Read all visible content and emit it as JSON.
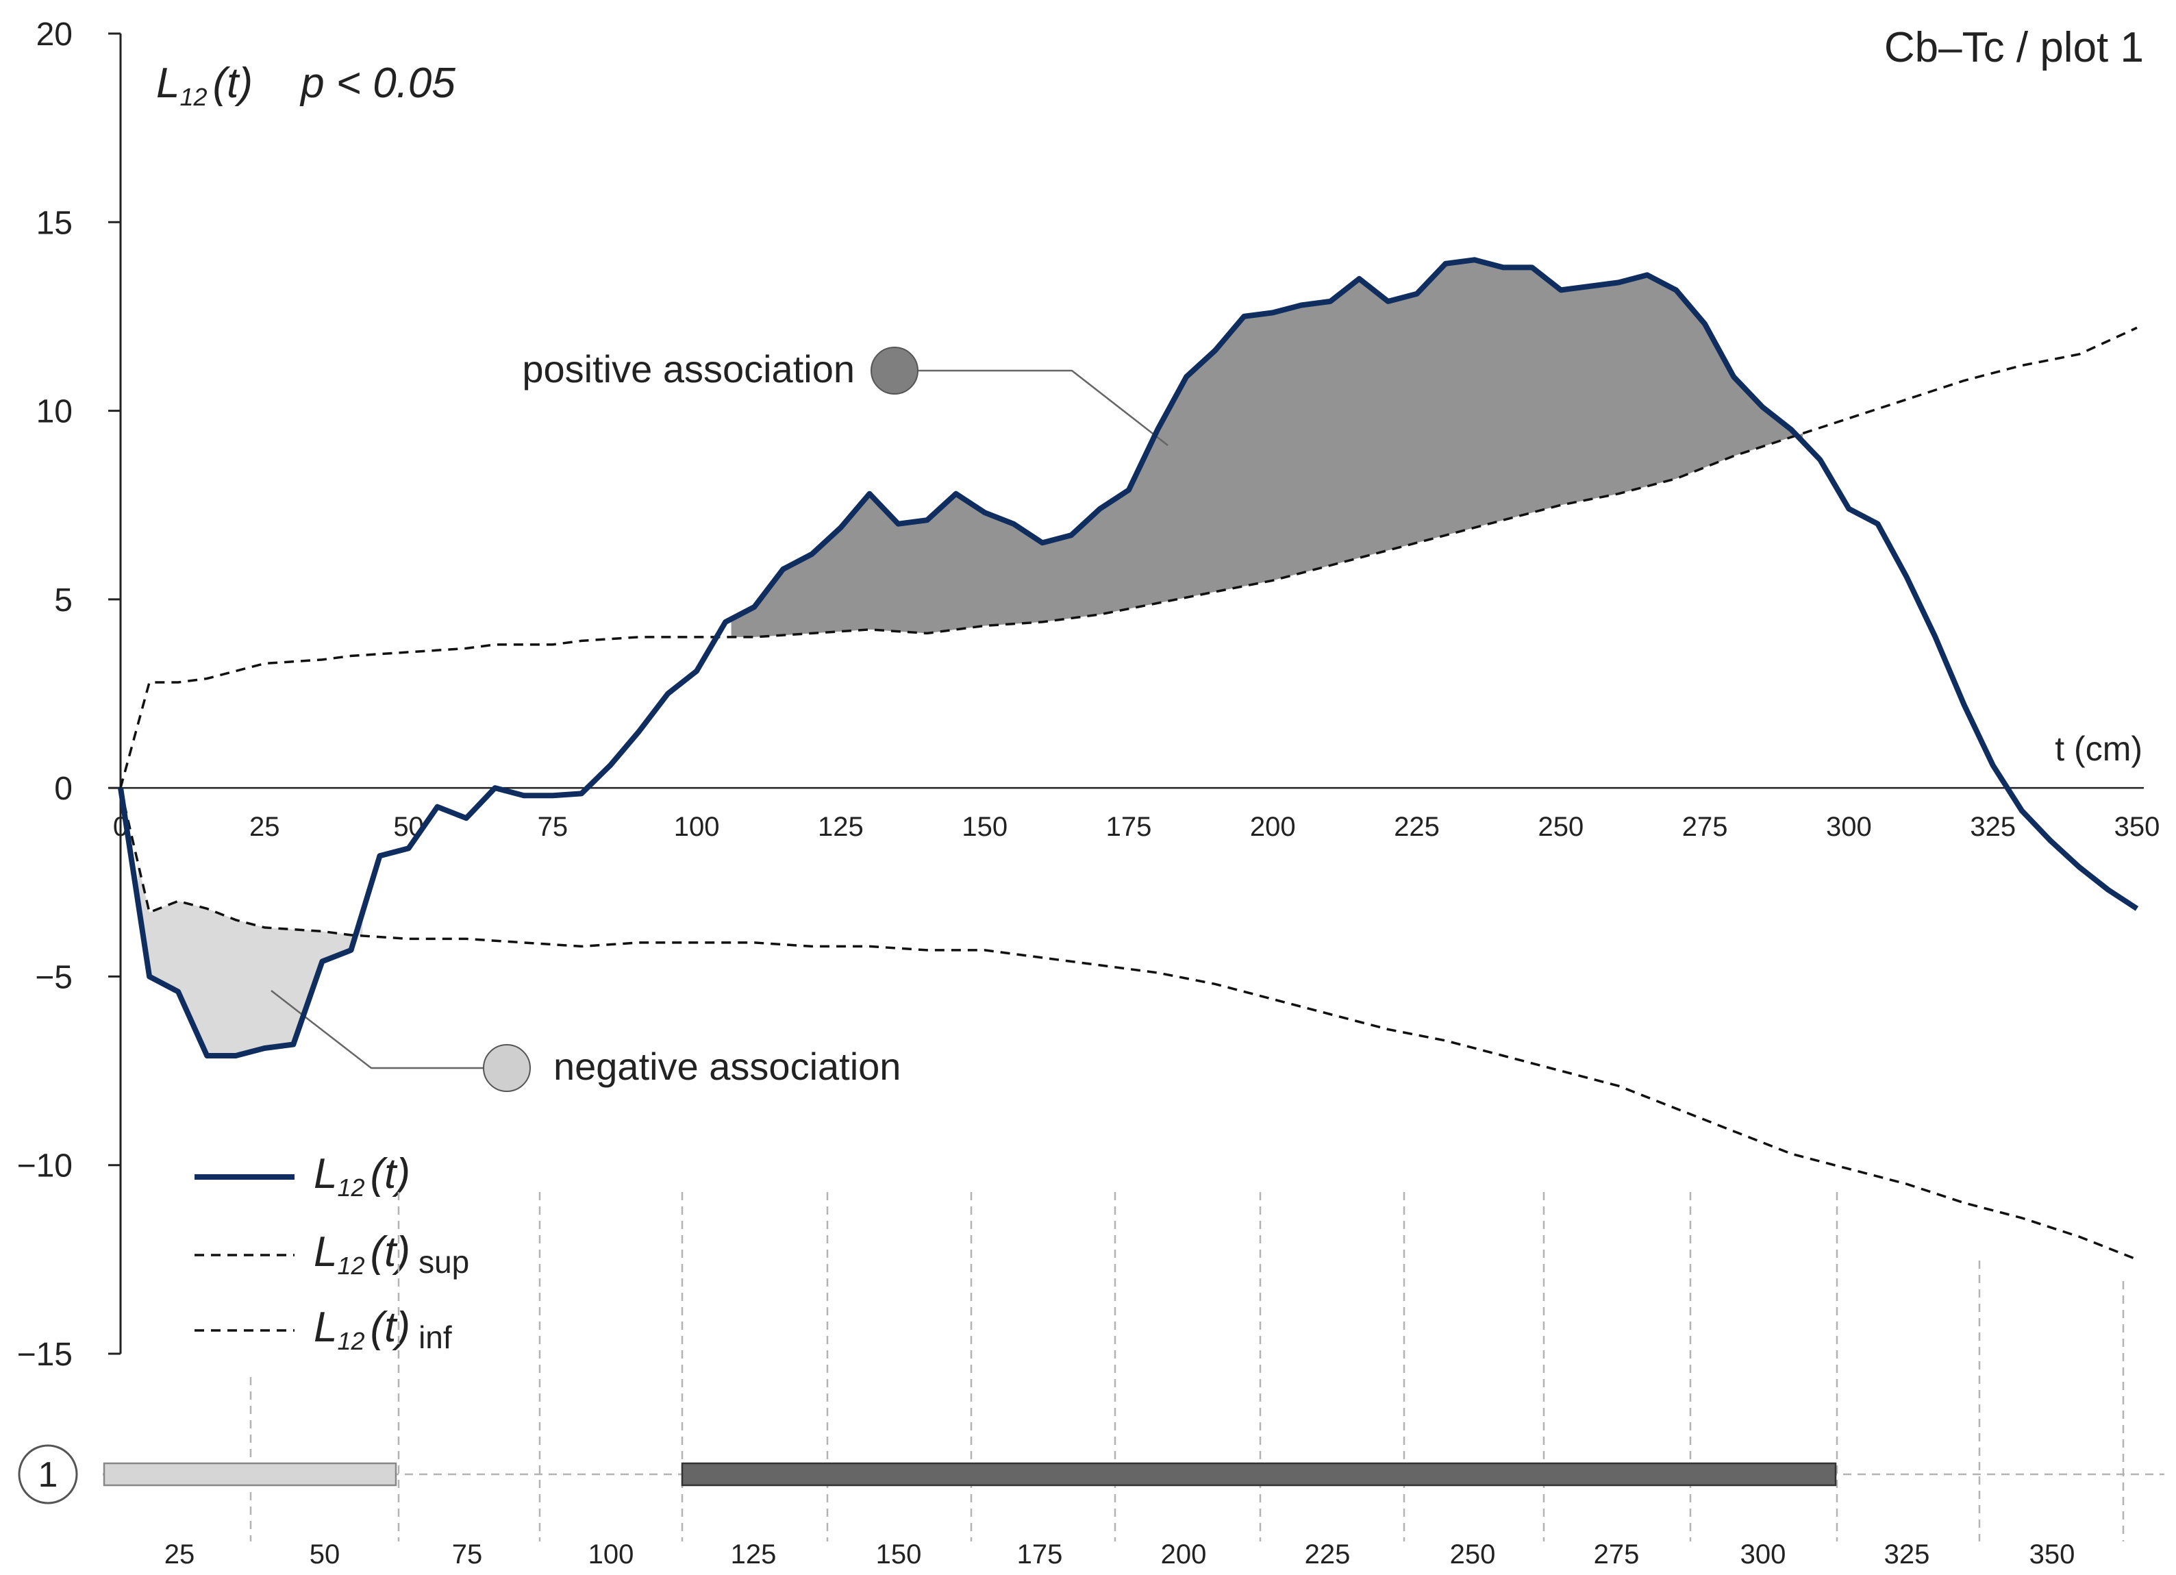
{
  "chart_data": {
    "type": "line",
    "title": "Cb–Tc / plot 1",
    "subtitle": {
      "stat": "L",
      "stat_sub": "12",
      "stat_arg": "(t)",
      "significance": "p < 0.05"
    },
    "xlabel": "t (cm)",
    "ylabel": "",
    "xlim": [
      0,
      350
    ],
    "ylim": [
      -15,
      20
    ],
    "x_ticks": [
      0,
      25,
      50,
      75,
      100,
      125,
      150,
      175,
      200,
      225,
      250,
      275,
      300,
      325,
      350
    ],
    "y_ticks": [
      {
        "value": 20,
        "label": "20"
      },
      {
        "value": 15,
        "label": "15"
      },
      {
        "value": 10,
        "label": "10"
      },
      {
        "value": 5,
        "label": "5"
      },
      {
        "value": 0,
        "label": "0"
      },
      {
        "value": -5,
        "label": "−5"
      },
      {
        "value": -10,
        "label": "−10"
      },
      {
        "value": -15,
        "label": "−15"
      }
    ],
    "series": [
      {
        "name": "L12(t)",
        "color": "#0f2d5e",
        "style": "solid",
        "points": [
          [
            0,
            0
          ],
          [
            5,
            -5
          ],
          [
            10,
            -5.4
          ],
          [
            15,
            -7.1
          ],
          [
            20,
            -7.1
          ],
          [
            25,
            -6.9
          ],
          [
            30,
            -6.8
          ],
          [
            35,
            -4.6
          ],
          [
            40,
            -4.3
          ],
          [
            45,
            -1.8
          ],
          [
            50,
            -1.6
          ],
          [
            55,
            -0.5
          ],
          [
            60,
            -0.8
          ],
          [
            65,
            0
          ],
          [
            70,
            -0.2
          ],
          [
            75,
            -0.2
          ],
          [
            80,
            -0.15
          ],
          [
            85,
            0.6
          ],
          [
            90,
            1.5
          ],
          [
            95,
            2.5
          ],
          [
            100,
            3.1
          ],
          [
            105,
            4.4
          ],
          [
            110,
            4.8
          ],
          [
            115,
            5.8
          ],
          [
            120,
            6.2
          ],
          [
            125,
            6.9
          ],
          [
            130,
            7.8
          ],
          [
            135,
            7.0
          ],
          [
            140,
            7.1
          ],
          [
            145,
            7.8
          ],
          [
            150,
            7.3
          ],
          [
            155,
            7.0
          ],
          [
            160,
            6.5
          ],
          [
            165,
            6.7
          ],
          [
            170,
            7.4
          ],
          [
            175,
            7.9
          ],
          [
            180,
            9.5
          ],
          [
            185,
            10.9
          ],
          [
            190,
            11.6
          ],
          [
            195,
            12.5
          ],
          [
            200,
            12.6
          ],
          [
            205,
            12.8
          ],
          [
            210,
            12.9
          ],
          [
            215,
            13.5
          ],
          [
            220,
            12.9
          ],
          [
            225,
            13.1
          ],
          [
            230,
            13.9
          ],
          [
            235,
            14.0
          ],
          [
            240,
            13.8
          ],
          [
            245,
            13.8
          ],
          [
            250,
            13.2
          ],
          [
            255,
            13.3
          ],
          [
            260,
            13.4
          ],
          [
            265,
            13.6
          ],
          [
            270,
            13.2
          ],
          [
            275,
            12.3
          ],
          [
            280,
            10.9
          ],
          [
            285,
            10.1
          ],
          [
            290,
            9.5
          ],
          [
            295,
            8.7
          ],
          [
            300,
            7.4
          ],
          [
            305,
            7.0
          ],
          [
            310,
            5.6
          ],
          [
            315,
            4.0
          ],
          [
            320,
            2.2
          ],
          [
            325,
            0.6
          ],
          [
            330,
            -0.6
          ],
          [
            335,
            -1.4
          ],
          [
            340,
            -2.1
          ],
          [
            345,
            -2.7
          ],
          [
            350,
            -3.2
          ]
        ]
      },
      {
        "name": "L12(t) sup",
        "color": "#111111",
        "style": "dashed",
        "points": [
          [
            0,
            0
          ],
          [
            5,
            2.8
          ],
          [
            10,
            2.8
          ],
          [
            15,
            2.9
          ],
          [
            20,
            3.1
          ],
          [
            25,
            3.3
          ],
          [
            35,
            3.4
          ],
          [
            40,
            3.5
          ],
          [
            50,
            3.6
          ],
          [
            60,
            3.7
          ],
          [
            65,
            3.8
          ],
          [
            75,
            3.8
          ],
          [
            80,
            3.9
          ],
          [
            90,
            4.0
          ],
          [
            100,
            4.0
          ],
          [
            110,
            4.0
          ],
          [
            120,
            4.1
          ],
          [
            130,
            4.2
          ],
          [
            140,
            4.1
          ],
          [
            150,
            4.3
          ],
          [
            160,
            4.4
          ],
          [
            170,
            4.6
          ],
          [
            180,
            4.9
          ],
          [
            190,
            5.2
          ],
          [
            200,
            5.5
          ],
          [
            210,
            5.9
          ],
          [
            220,
            6.3
          ],
          [
            230,
            6.7
          ],
          [
            240,
            7.1
          ],
          [
            250,
            7.5
          ],
          [
            260,
            7.8
          ],
          [
            270,
            8.2
          ],
          [
            280,
            8.8
          ],
          [
            290,
            9.3
          ],
          [
            300,
            9.8
          ],
          [
            310,
            10.3
          ],
          [
            320,
            10.8
          ],
          [
            330,
            11.2
          ],
          [
            340,
            11.5
          ],
          [
            350,
            12.2
          ]
        ]
      },
      {
        "name": "L12(t) inf",
        "color": "#111111",
        "style": "dashed",
        "points": [
          [
            0,
            0
          ],
          [
            5,
            -3.3
          ],
          [
            10,
            -3.0
          ],
          [
            15,
            -3.2
          ],
          [
            20,
            -3.5
          ],
          [
            25,
            -3.7
          ],
          [
            35,
            -3.8
          ],
          [
            40,
            -3.9
          ],
          [
            50,
            -4.0
          ],
          [
            60,
            -4.0
          ],
          [
            70,
            -4.1
          ],
          [
            80,
            -4.2
          ],
          [
            90,
            -4.1
          ],
          [
            100,
            -4.1
          ],
          [
            110,
            -4.1
          ],
          [
            120,
            -4.2
          ],
          [
            130,
            -4.2
          ],
          [
            140,
            -4.3
          ],
          [
            150,
            -4.3
          ],
          [
            160,
            -4.5
          ],
          [
            170,
            -4.7
          ],
          [
            180,
            -4.9
          ],
          [
            190,
            -5.2
          ],
          [
            200,
            -5.6
          ],
          [
            210,
            -6.0
          ],
          [
            220,
            -6.4
          ],
          [
            230,
            -6.7
          ],
          [
            240,
            -7.1
          ],
          [
            250,
            -7.5
          ],
          [
            260,
            -7.9
          ],
          [
            270,
            -8.5
          ],
          [
            280,
            -9.1
          ],
          [
            290,
            -9.7
          ],
          [
            300,
            -10.1
          ],
          [
            310,
            -10.5
          ],
          [
            320,
            -11.0
          ],
          [
            330,
            -11.4
          ],
          [
            340,
            -11.9
          ],
          [
            350,
            -12.5
          ]
        ]
      }
    ],
    "shaded_regions": [
      {
        "type": "positive association",
        "color": "#939393",
        "x_range": [
          106,
          292
        ]
      },
      {
        "type": "negative association",
        "color": "#dadada",
        "x_range": [
          3,
          42
        ]
      }
    ],
    "annotations": [
      {
        "text": "positive association",
        "marker_color": "#7f7f7f"
      },
      {
        "text": "negative association",
        "marker_color": "#cfcfcf"
      }
    ],
    "legend": {
      "placement": "bottom-left",
      "entries": [
        {
          "label": "L",
          "sub": "12",
          "arg": "(t)",
          "suffix": "",
          "style": "solid",
          "color": "#0f2d5e"
        },
        {
          "label": "L",
          "sub": "12",
          "arg": "(t)",
          "suffix": "sup",
          "style": "dashed",
          "color": "#111111"
        },
        {
          "label": "L",
          "sub": "12",
          "arg": "(t)",
          "suffix": "inf",
          "style": "dashed",
          "color": "#111111"
        }
      ]
    },
    "strip": {
      "marker": "1",
      "tick_labels": [
        "25",
        "50",
        "75",
        "100",
        "125",
        "150",
        "175",
        "200",
        "225",
        "250",
        "275",
        "300",
        "325",
        "350"
      ],
      "bars": [
        {
          "type": "negative association",
          "from_label": "25",
          "to_label": "50",
          "color": "#d6d6d6"
        },
        {
          "type": "positive association",
          "from_label": "125",
          "to_label": "300",
          "color": "#666666"
        }
      ]
    }
  }
}
